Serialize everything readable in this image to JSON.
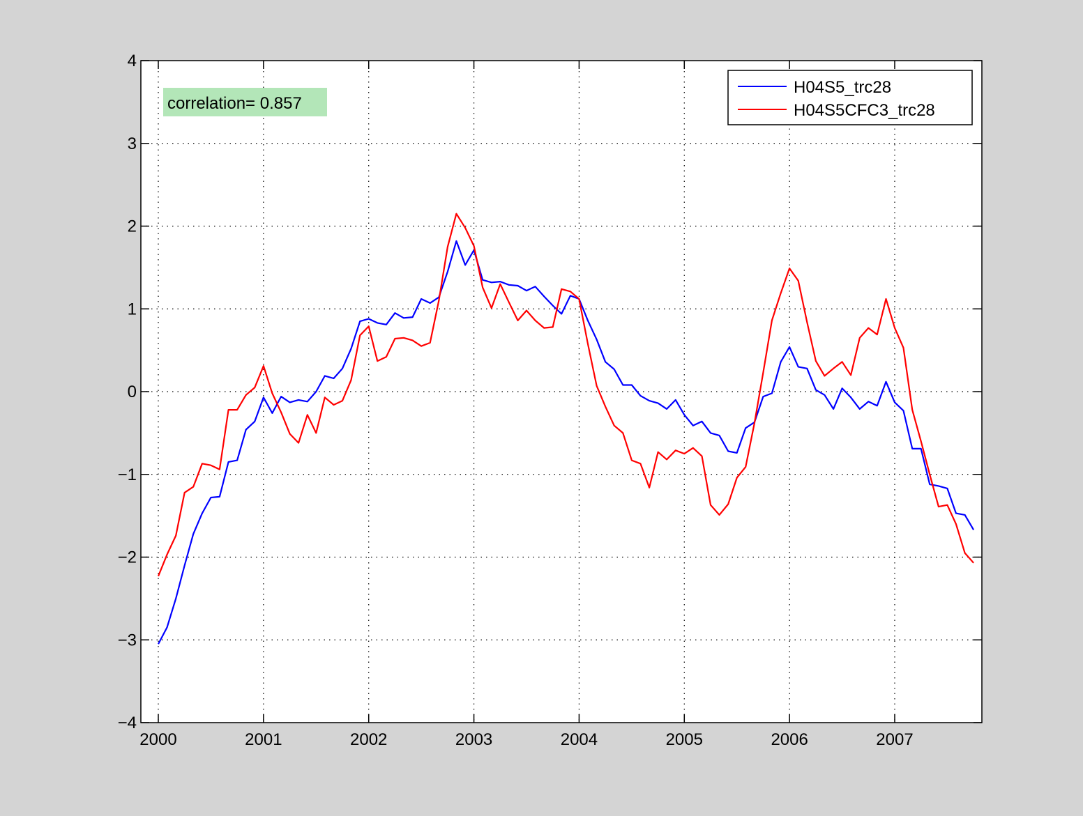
{
  "figure": {
    "background": "#d4d4d4",
    "axes_background": "#ffffff"
  },
  "annotation": {
    "text": "correlation= 0.857",
    "background": "#b3e6b8"
  },
  "chart_data": {
    "type": "line",
    "title": "",
    "xlabel": "",
    "ylabel": "",
    "xlim": [
      2000,
      2007.83
    ],
    "ylim": [
      -4,
      4
    ],
    "xticks": [
      2000,
      2001,
      2002,
      2003,
      2004,
      2005,
      2006,
      2007
    ],
    "xtick_labels": [
      "2000",
      "2001",
      "2002",
      "2003",
      "2004",
      "2005",
      "2006",
      "2007"
    ],
    "yticks": [
      -4,
      -3,
      -2,
      -1,
      0,
      1,
      2,
      3,
      4
    ],
    "ytick_labels": [
      "−4",
      "−3",
      "−2",
      "−1",
      "0",
      "1",
      "2",
      "3",
      "4"
    ],
    "grid": true,
    "legend_position": "top-right",
    "x": [
      2000.0,
      2000.083,
      2000.167,
      2000.25,
      2000.333,
      2000.417,
      2000.5,
      2000.583,
      2000.667,
      2000.75,
      2000.833,
      2000.917,
      2001.0,
      2001.083,
      2001.167,
      2001.25,
      2001.333,
      2001.417,
      2001.5,
      2001.583,
      2001.667,
      2001.75,
      2001.833,
      2001.917,
      2002.0,
      2002.083,
      2002.167,
      2002.25,
      2002.333,
      2002.417,
      2002.5,
      2002.583,
      2002.667,
      2002.75,
      2002.833,
      2002.917,
      2003.0,
      2003.083,
      2003.167,
      2003.25,
      2003.333,
      2003.417,
      2003.5,
      2003.583,
      2003.667,
      2003.75,
      2003.833,
      2003.917,
      2004.0,
      2004.083,
      2004.167,
      2004.25,
      2004.333,
      2004.417,
      2004.5,
      2004.583,
      2004.667,
      2004.75,
      2004.833,
      2004.917,
      2005.0,
      2005.083,
      2005.167,
      2005.25,
      2005.333,
      2005.417,
      2005.5,
      2005.583,
      2005.667,
      2005.75,
      2005.833,
      2005.917,
      2006.0,
      2006.083,
      2006.167,
      2006.25,
      2006.333,
      2006.417,
      2006.5,
      2006.583,
      2006.667,
      2006.75,
      2006.833,
      2006.917,
      2007.0,
      2007.083,
      2007.167,
      2007.25,
      2007.333,
      2007.417,
      2007.5,
      2007.583,
      2007.667,
      2007.75
    ],
    "series": [
      {
        "name": "H04S5_trc28",
        "color": "#0000ff",
        "values": [
          -3.05,
          -2.85,
          -2.5,
          -2.1,
          -1.72,
          -1.47,
          -1.28,
          -1.27,
          -0.85,
          -0.83,
          -0.46,
          -0.36,
          -0.07,
          -0.26,
          -0.06,
          -0.13,
          -0.1,
          -0.12,
          0.0,
          0.19,
          0.16,
          0.28,
          0.52,
          0.85,
          0.88,
          0.83,
          0.81,
          0.95,
          0.89,
          0.9,
          1.12,
          1.07,
          1.14,
          1.45,
          1.82,
          1.53,
          1.71,
          1.35,
          1.32,
          1.33,
          1.29,
          1.28,
          1.22,
          1.27,
          1.15,
          1.04,
          0.94,
          1.16,
          1.12,
          0.86,
          0.63,
          0.36,
          0.27,
          0.08,
          0.08,
          -0.05,
          -0.11,
          -0.14,
          -0.21,
          -0.1,
          -0.28,
          -0.41,
          -0.36,
          -0.5,
          -0.53,
          -0.72,
          -0.74,
          -0.44,
          -0.37,
          -0.06,
          -0.02,
          0.36,
          0.54,
          0.3,
          0.28,
          0.02,
          -0.04,
          -0.21,
          0.04,
          -0.07,
          -0.21,
          -0.12,
          -0.17,
          0.12,
          -0.13,
          -0.23,
          -0.69,
          -0.69,
          -1.12,
          -1.14,
          -1.17,
          -1.47,
          -1.49,
          -1.67
        ]
      },
      {
        "name": "H04S5CFC3_trc28",
        "color": "#ff0000",
        "values": [
          -2.23,
          -1.97,
          -1.74,
          -1.22,
          -1.15,
          -0.87,
          -0.89,
          -0.94,
          -0.22,
          -0.22,
          -0.04,
          0.05,
          0.31,
          -0.02,
          -0.25,
          -0.51,
          -0.62,
          -0.28,
          -0.5,
          -0.07,
          -0.16,
          -0.11,
          0.14,
          0.68,
          0.79,
          0.37,
          0.42,
          0.64,
          0.65,
          0.62,
          0.55,
          0.59,
          1.1,
          1.75,
          2.15,
          1.98,
          1.76,
          1.26,
          1.01,
          1.3,
          1.08,
          0.86,
          0.98,
          0.86,
          0.77,
          0.78,
          1.24,
          1.21,
          1.12,
          0.58,
          0.07,
          -0.18,
          -0.41,
          -0.5,
          -0.83,
          -0.87,
          -1.16,
          -0.73,
          -0.82,
          -0.71,
          -0.75,
          -0.68,
          -0.78,
          -1.37,
          -1.49,
          -1.36,
          -1.04,
          -0.91,
          -0.38,
          0.23,
          0.86,
          1.19,
          1.49,
          1.34,
          0.84,
          0.37,
          0.19,
          0.28,
          0.36,
          0.2,
          0.65,
          0.77,
          0.69,
          1.12,
          0.77,
          0.53,
          -0.22,
          -0.6,
          -1.0,
          -1.39,
          -1.37,
          -1.6,
          -1.95,
          -2.07
        ]
      }
    ]
  }
}
